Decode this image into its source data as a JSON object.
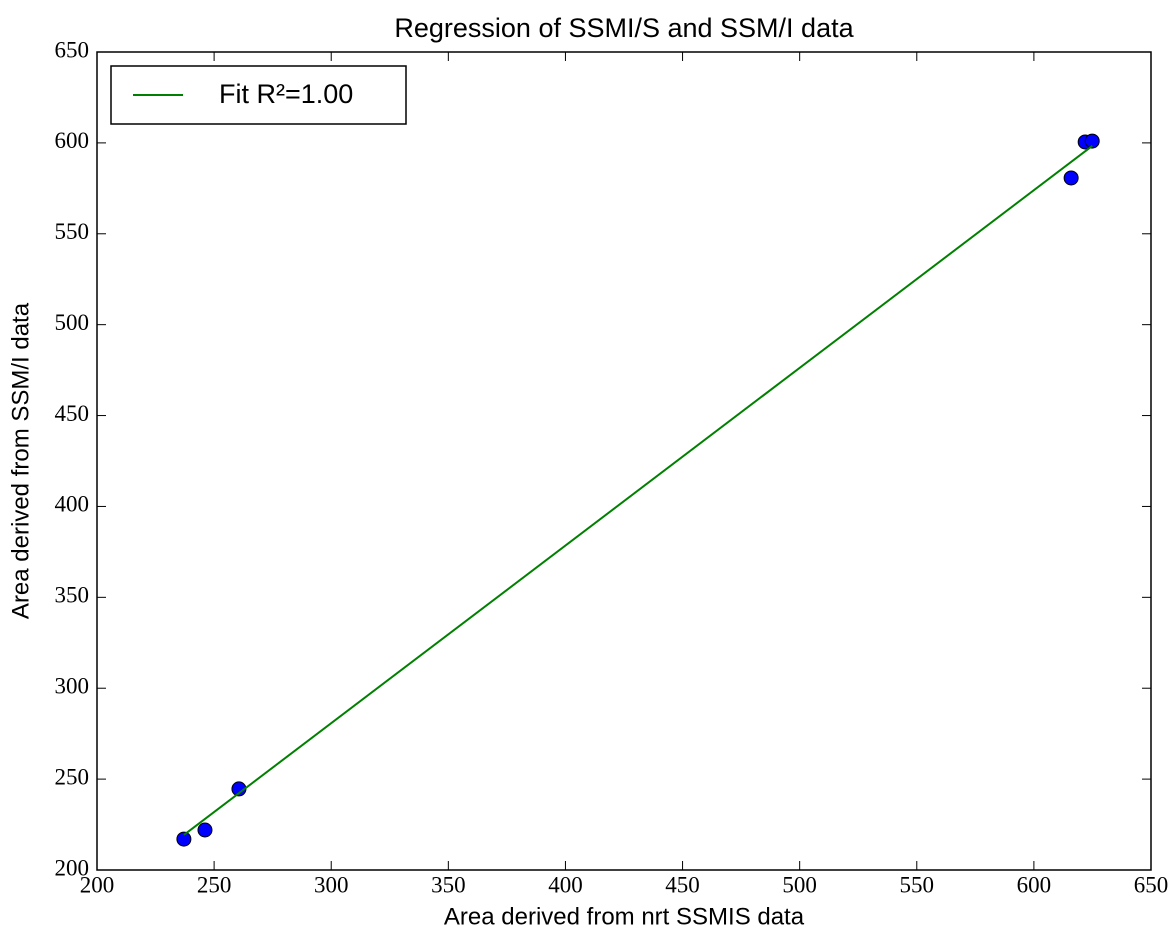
{
  "chart_data": {
    "type": "scatter",
    "title": "Regression of SSMI/S and SSM/I data",
    "xlabel": "Area derived from nrt SSMIS data",
    "ylabel": "Area derived from SSM/I data",
    "xlim": [
      200,
      650
    ],
    "ylim": [
      200,
      650
    ],
    "xticks": [
      200,
      250,
      300,
      350,
      400,
      450,
      500,
      550,
      600,
      650
    ],
    "yticks": [
      200,
      250,
      300,
      350,
      400,
      450,
      500,
      550,
      600,
      650
    ],
    "grid": false,
    "legend": "upper left",
    "series": [
      {
        "type": "scatter",
        "color": "#0000ff",
        "x": [
          237.1,
          246.1,
          260.6,
          615.9,
          621.9,
          624.9
        ],
        "values": [
          217,
          222,
          244.6,
          580.7,
          600.5,
          601
        ]
      },
      {
        "type": "line",
        "name": "Fit R²=1.00",
        "color": "#008000",
        "x": [
          237.1,
          624.9
        ],
        "values": [
          219.3,
          598.3
        ]
      }
    ]
  }
}
